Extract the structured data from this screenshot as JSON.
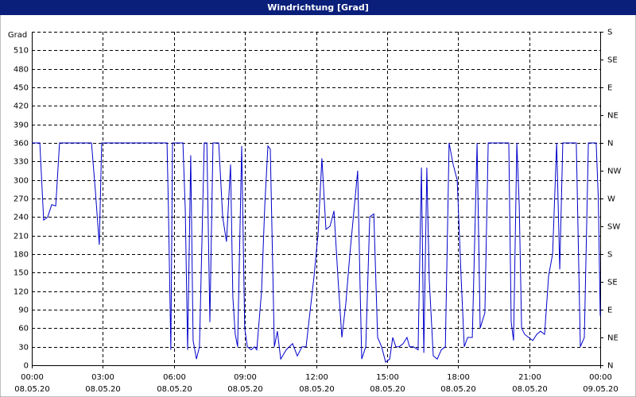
{
  "chart_data": {
    "type": "line",
    "title": "Windrichtung [Grad]",
    "y_label": "Grad",
    "x": [
      0,
      0.34,
      0.5,
      0.67,
      0.84,
      1.01,
      1.17,
      2.52,
      2.69,
      2.85,
      2.95,
      5.71,
      5.77,
      5.87,
      5.94,
      6.38,
      6.48,
      6.58,
      6.71,
      6.81,
      6.95,
      7.08,
      7.28,
      7.39,
      7.52,
      7.65,
      7.89,
      8.06,
      8.22,
      8.39,
      8.49,
      8.59,
      8.69,
      8.86,
      8.99,
      9.1,
      9.26,
      9.4,
      9.5,
      9.7,
      9.84,
      9.97,
      10.07,
      10.24,
      10.37,
      10.51,
      10.74,
      11.01,
      11.21,
      11.41,
      11.58,
      11.92,
      12.09,
      12.25,
      12.42,
      12.59,
      12.76,
      12.93,
      13.09,
      13.26,
      13.43,
      13.6,
      13.76,
      13.86,
      13.93,
      14.1,
      14.27,
      14.44,
      14.6,
      14.77,
      14.94,
      15.11,
      15.24,
      15.37,
      15.51,
      15.68,
      15.84,
      15.95,
      16.11,
      16.31,
      16.45,
      16.55,
      16.68,
      16.78,
      16.95,
      17.12,
      17.29,
      17.46,
      17.62,
      17.79,
      17.96,
      18.13,
      18.26,
      18.4,
      18.6,
      18.8,
      18.93,
      19.13,
      19.27,
      20.14,
      20.24,
      20.34,
      20.48,
      20.58,
      20.68,
      20.81,
      20.98,
      21.15,
      21.32,
      21.48,
      21.65,
      21.82,
      21.99,
      22.16,
      22.29,
      22.42,
      22.99,
      23.16,
      23.33,
      23.5,
      23.83,
      23.92,
      24
    ],
    "series": [
      {
        "name": "Windrichtung",
        "color": "#0000cc",
        "values": [
          360,
          360,
          235,
          240,
          260,
          258,
          360,
          360,
          280,
          195,
          360,
          360,
          250,
          25,
          360,
          360,
          250,
          25,
          340,
          40,
          10,
          30,
          360,
          360,
          70,
          360,
          360,
          240,
          200,
          325,
          110,
          50,
          30,
          355,
          60,
          30,
          25,
          30,
          25,
          120,
          260,
          355,
          350,
          30,
          55,
          10,
          25,
          35,
          15,
          30,
          30,
          145,
          215,
          335,
          220,
          225,
          250,
          140,
          45,
          100,
          180,
          250,
          315,
          130,
          10,
          30,
          240,
          245,
          45,
          30,
          5,
          10,
          45,
          30,
          30,
          35,
          45,
          30,
          30,
          25,
          320,
          20,
          320,
          140,
          15,
          10,
          25,
          30,
          360,
          325,
          300,
          140,
          30,
          45,
          45,
          360,
          60,
          85,
          360,
          360,
          70,
          40,
          360,
          260,
          60,
          50,
          45,
          40,
          50,
          55,
          50,
          145,
          180,
          360,
          155,
          360,
          360,
          30,
          45,
          360,
          360,
          270,
          80
        ]
      }
    ],
    "xlim": [
      0,
      24
    ],
    "xticks": [
      {
        "value": 0,
        "label": "00:00"
      },
      {
        "value": 3,
        "label": "03:00"
      },
      {
        "value": 6,
        "label": "06:00"
      },
      {
        "value": 9,
        "label": "09:00"
      },
      {
        "value": 12,
        "label": "12:00"
      },
      {
        "value": 15,
        "label": "15:00"
      },
      {
        "value": 18,
        "label": "18:00"
      },
      {
        "value": 21,
        "label": "21:00"
      },
      {
        "value": 24,
        "label": "00:00"
      }
    ],
    "xtick_dates": [
      "08.05.20",
      "08.05.20",
      "08.05.20",
      "08.05.20",
      "08.05.20",
      "08.05.20",
      "08.05.20",
      "08.05.20",
      "09.05.20"
    ],
    "ylim": [
      0,
      540
    ],
    "yticks": [
      0,
      30,
      60,
      90,
      120,
      150,
      180,
      210,
      240,
      270,
      300,
      330,
      360,
      390,
      420,
      450,
      480,
      510
    ],
    "y2lim": [
      0,
      540
    ],
    "y2ticks": [
      {
        "value": 0,
        "label": "N"
      },
      {
        "value": 45,
        "label": "NE"
      },
      {
        "value": 90,
        "label": "E"
      },
      {
        "value": 135,
        "label": "SE"
      },
      {
        "value": 180,
        "label": "S"
      },
      {
        "value": 225,
        "label": "SW"
      },
      {
        "value": 270,
        "label": "W"
      },
      {
        "value": 315,
        "label": "NW"
      },
      {
        "value": 360,
        "label": "N"
      },
      {
        "value": 405,
        "label": "NE"
      },
      {
        "value": 450,
        "label": "E"
      },
      {
        "value": 495,
        "label": "SE"
      },
      {
        "value": 540,
        "label": "S"
      }
    ],
    "grid": true
  }
}
